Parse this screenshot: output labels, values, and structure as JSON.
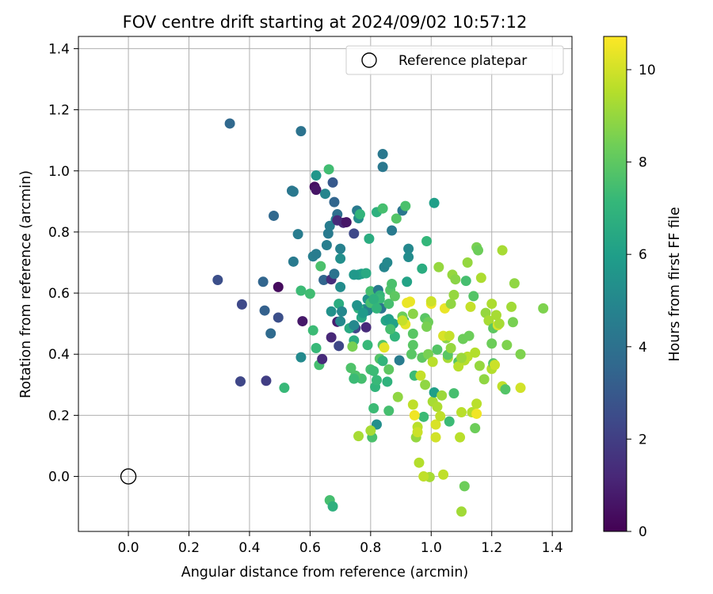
{
  "chart_data": {
    "type": "scatter",
    "title": "FOV centre drift starting at 2024/09/02 10:57:12",
    "xlabel": "Angular distance from reference (arcmin)",
    "ylabel": "Rotation from reference (arcmin)",
    "xlim": [
      -0.165,
      1.465
    ],
    "ylim": [
      -0.18,
      1.44
    ],
    "xticks": [
      0.0,
      0.2,
      0.4,
      0.6,
      0.8,
      1.0,
      1.2,
      1.4
    ],
    "xtick_labels": [
      "0.0",
      "0.2",
      "0.4",
      "0.6",
      "0.8",
      "1.0",
      "1.2",
      "1.4"
    ],
    "yticks": [
      0.0,
      0.2,
      0.4,
      0.6,
      0.8,
      1.0,
      1.2,
      1.4
    ],
    "ytick_labels": [
      "0.0",
      "0.2",
      "0.4",
      "0.6",
      "0.8",
      "1.0",
      "1.2",
      "1.4"
    ],
    "grid": true,
    "legend": {
      "placement": "top-right",
      "entries": [
        "Reference platepar"
      ]
    },
    "reference_point": {
      "x": 0.0,
      "y": 0.0,
      "marker": "open-circle"
    },
    "colorbar": {
      "label": "Hours from first FF file",
      "colormap": "viridis",
      "range": [
        0,
        10.72
      ],
      "ticks": [
        0,
        2,
        4,
        6,
        8,
        10
      ],
      "tick_labels": [
        "0",
        "2",
        "4",
        "6",
        "8",
        "10"
      ],
      "stops": [
        "#440154",
        "#482878",
        "#3e4989",
        "#31688e",
        "#26828e",
        "#1f9e89",
        "#35b779",
        "#6ece58",
        "#b5de2b",
        "#fde725"
      ]
    },
    "series": [
      {
        "points": [
          [
            0.335,
            1.155,
            3.6
          ],
          [
            0.57,
            1.13,
            4.1
          ],
          [
            0.295,
            0.643,
            2.6
          ],
          [
            0.375,
            0.563,
            2.4
          ],
          [
            0.37,
            0.311,
            2.3
          ],
          [
            0.455,
            0.313,
            2.0
          ],
          [
            0.445,
            0.637,
            3.5
          ],
          [
            0.45,
            0.543,
            3.3
          ],
          [
            0.48,
            0.853,
            3.6
          ],
          [
            0.47,
            0.468,
            3.7
          ],
          [
            0.495,
            0.52,
            2.6
          ],
          [
            0.495,
            0.62,
            0.3
          ],
          [
            0.515,
            0.29,
            7.2
          ],
          [
            0.54,
            0.935,
            4.2
          ],
          [
            0.545,
            0.932,
            4.3
          ],
          [
            0.545,
            0.703,
            4.4
          ],
          [
            0.56,
            0.793,
            4.5
          ],
          [
            0.57,
            0.608,
            7.3
          ],
          [
            0.57,
            0.39,
            5.1
          ],
          [
            0.575,
            0.508,
            0.7
          ],
          [
            0.6,
            0.598,
            7.4
          ],
          [
            0.61,
            0.478,
            7.3
          ],
          [
            0.61,
            0.72,
            4.6
          ],
          [
            0.615,
            0.948,
            0.4
          ],
          [
            0.62,
            0.985,
            5.6
          ],
          [
            0.62,
            0.728,
            4.5
          ],
          [
            0.62,
            0.42,
            7.2
          ],
          [
            0.62,
            0.938,
            0.6
          ],
          [
            0.63,
            0.365,
            7.5
          ],
          [
            0.635,
            0.688,
            7.6
          ],
          [
            0.64,
            0.384,
            1.3
          ],
          [
            0.645,
            0.643,
            3.5
          ],
          [
            0.65,
            0.925,
            4.9
          ],
          [
            0.655,
            0.757,
            4.6
          ],
          [
            0.66,
            0.795,
            4.4
          ],
          [
            0.662,
            1.005,
            7.4
          ],
          [
            0.665,
            0.82,
            4.5
          ],
          [
            0.67,
            0.645,
            1.4
          ],
          [
            0.67,
            0.455,
            1.2
          ],
          [
            0.675,
            0.962,
            3.0
          ],
          [
            0.68,
            0.898,
            3.5
          ],
          [
            0.68,
            0.663,
            4.1
          ],
          [
            0.685,
            0.84,
            4.8
          ],
          [
            0.69,
            0.858,
            3.9
          ],
          [
            0.69,
            0.838,
            1.3
          ],
          [
            0.69,
            0.506,
            0.9
          ],
          [
            0.695,
            0.427,
            2.3
          ],
          [
            0.695,
            0.565,
            6.6
          ],
          [
            0.7,
            0.745,
            4.7
          ],
          [
            0.7,
            0.713,
            5.3
          ],
          [
            0.7,
            0.62,
            5.2
          ],
          [
            0.7,
            0.508,
            5.0
          ],
          [
            0.71,
            0.83,
            1.2
          ],
          [
            0.72,
            0.832,
            0.6
          ],
          [
            0.745,
            0.795,
            2.4
          ],
          [
            0.75,
            0.485,
            2.3
          ],
          [
            0.755,
            0.87,
            4.4
          ],
          [
            0.76,
            0.845,
            5.2
          ],
          [
            0.76,
            0.66,
            5.7
          ],
          [
            0.765,
            0.858,
            7.0
          ],
          [
            0.77,
            0.663,
            6.0
          ],
          [
            0.78,
            0.547,
            5.3
          ],
          [
            0.785,
            0.488,
            1.3
          ],
          [
            0.79,
            0.543,
            4.7
          ],
          [
            0.79,
            0.58,
            5.5
          ],
          [
            0.795,
            0.778,
            6.6
          ],
          [
            0.8,
            0.606,
            7.5
          ],
          [
            0.8,
            0.568,
            7.5
          ],
          [
            0.8,
            0.35,
            7.5
          ],
          [
            0.805,
            0.128,
            7.6
          ],
          [
            0.81,
            0.223,
            7.3
          ],
          [
            0.81,
            0.345,
            7.3
          ],
          [
            0.815,
            0.293,
            7.0
          ],
          [
            0.82,
            0.865,
            6.8
          ],
          [
            0.82,
            0.17,
            5.3
          ],
          [
            0.825,
            0.61,
            4.4
          ],
          [
            0.83,
            0.592,
            7.0
          ],
          [
            0.83,
            0.58,
            7.2
          ],
          [
            0.835,
            0.55,
            4.2
          ],
          [
            0.84,
            1.055,
            4.3
          ],
          [
            0.84,
            1.013,
            4.3
          ],
          [
            0.84,
            0.877,
            7.5
          ],
          [
            0.845,
            0.685,
            4.9
          ],
          [
            0.85,
            0.51,
            6.3
          ],
          [
            0.855,
            0.7,
            5.0
          ],
          [
            0.86,
            0.515,
            6.0
          ],
          [
            0.86,
            0.215,
            7.5
          ],
          [
            0.865,
            0.61,
            7.8
          ],
          [
            0.87,
            0.805,
            4.4
          ],
          [
            0.87,
            0.63,
            7.6
          ],
          [
            0.875,
            0.5,
            6.1
          ],
          [
            0.88,
            0.458,
            7.0
          ],
          [
            0.885,
            0.844,
            7.8
          ],
          [
            0.89,
            0.26,
            8.9
          ],
          [
            0.895,
            0.38,
            4.5
          ],
          [
            0.905,
            0.87,
            4.2
          ],
          [
            0.91,
            0.51,
            7.3
          ],
          [
            0.915,
            0.885,
            7.6
          ],
          [
            0.915,
            0.498,
            10.3
          ],
          [
            0.92,
            0.637,
            6.2
          ],
          [
            0.92,
            0.568,
            10.4
          ],
          [
            0.925,
            0.745,
            5.0
          ],
          [
            0.925,
            0.718,
            5.2
          ],
          [
            0.93,
            0.572,
            10.4
          ],
          [
            0.94,
            0.532,
            8.8
          ],
          [
            0.94,
            0.467,
            7.9
          ],
          [
            0.94,
            0.43,
            7.9
          ],
          [
            0.945,
            0.33,
            7.3
          ],
          [
            0.95,
            0.128,
            9.0
          ],
          [
            0.955,
            0.162,
            9.6
          ],
          [
            0.96,
            0.045,
            9.5
          ],
          [
            0.97,
            0.389,
            8.0
          ],
          [
            0.97,
            0.68,
            6.6
          ],
          [
            0.975,
            0.195,
            7.3
          ],
          [
            0.98,
            0.518,
            7.9
          ],
          [
            0.98,
            0.3,
            8.9
          ],
          [
            0.985,
            0.77,
            7.1
          ],
          [
            0.99,
            0.4,
            8.5
          ],
          [
            0.995,
            -0.002,
            9.3
          ],
          [
            1.0,
            0.565,
            10.5
          ],
          [
            1.005,
            0.375,
            9.6
          ],
          [
            1.005,
            0.245,
            9.3
          ],
          [
            1.01,
            0.895,
            6.0
          ],
          [
            1.01,
            0.275,
            6.0
          ],
          [
            1.015,
            0.128,
            10.0
          ],
          [
            1.015,
            0.17,
            10.1
          ],
          [
            1.02,
            0.415,
            7.8
          ],
          [
            1.02,
            0.228,
            9.4
          ],
          [
            1.025,
            0.685,
            9.0
          ],
          [
            1.03,
            0.197,
            9.7
          ],
          [
            1.035,
            0.265,
            9.1
          ],
          [
            1.04,
            0.006,
            9.7
          ],
          [
            1.045,
            0.55,
            10.4
          ],
          [
            1.05,
            0.452,
            8.8
          ],
          [
            1.055,
            0.388,
            9.3
          ],
          [
            1.055,
            0.398,
            7.9
          ],
          [
            1.06,
            0.18,
            7.3
          ],
          [
            1.065,
            0.565,
            8.9
          ],
          [
            1.07,
            0.66,
            9.0
          ],
          [
            1.075,
            0.272,
            7.5
          ],
          [
            1.08,
            0.645,
            8.8
          ],
          [
            1.09,
            0.375,
            7.8
          ],
          [
            1.095,
            0.128,
            9.6
          ],
          [
            1.1,
            0.21,
            9.6
          ],
          [
            1.1,
            -0.115,
            9.2
          ],
          [
            1.105,
            0.45,
            8.3
          ],
          [
            1.11,
            0.38,
            9.5
          ],
          [
            1.11,
            -0.032,
            8.3
          ],
          [
            1.115,
            0.64,
            7.5
          ],
          [
            1.12,
            0.7,
            9.0
          ],
          [
            1.12,
            0.392,
            9.6
          ],
          [
            1.125,
            0.46,
            8.3
          ],
          [
            1.13,
            0.555,
            9.8
          ],
          [
            1.135,
            0.21,
            9.5
          ],
          [
            1.14,
            0.59,
            7.8
          ],
          [
            1.145,
            0.158,
            8.3
          ],
          [
            1.145,
            0.405,
            9.5
          ],
          [
            1.15,
            0.238,
            9.6
          ],
          [
            1.15,
            0.205,
            10.5
          ],
          [
            1.15,
            0.75,
            8.5
          ],
          [
            1.155,
            0.74,
            8.3
          ],
          [
            1.16,
            0.362,
            9.0
          ],
          [
            1.165,
            0.65,
            9.4
          ],
          [
            1.175,
            0.318,
            8.9
          ],
          [
            1.18,
            0.535,
            9.0
          ],
          [
            1.19,
            0.51,
            9.3
          ],
          [
            1.2,
            0.352,
            9.5
          ],
          [
            1.2,
            0.565,
            9.4
          ],
          [
            1.2,
            0.435,
            8.3
          ],
          [
            1.205,
            0.37,
            7.8
          ],
          [
            1.205,
            0.485,
            8.0
          ],
          [
            1.21,
            0.365,
            9.9
          ],
          [
            1.215,
            0.528,
            9.3
          ],
          [
            1.22,
            0.495,
            10.1
          ],
          [
            1.225,
            0.5,
            9.3
          ],
          [
            1.235,
            0.74,
            9.3
          ],
          [
            1.235,
            0.295,
            9.7
          ],
          [
            1.245,
            0.285,
            7.8
          ],
          [
            1.25,
            0.43,
            8.6
          ],
          [
            1.265,
            0.555,
            9.2
          ],
          [
            1.27,
            0.505,
            8.5
          ],
          [
            1.275,
            0.632,
            8.9
          ],
          [
            1.295,
            0.4,
            8.6
          ],
          [
            1.295,
            0.29,
            10.0
          ],
          [
            1.37,
            0.55,
            8.6
          ],
          [
            0.785,
            0.665,
            6.5
          ],
          [
            0.905,
            0.523,
            8.3
          ],
          [
            0.84,
            0.43,
            7.8
          ],
          [
            0.77,
            0.32,
            7.5
          ],
          [
            0.8,
            0.15,
            9.3
          ],
          [
            0.76,
            0.132,
            9.3
          ],
          [
            0.75,
            0.33,
            7.7
          ],
          [
            0.865,
            0.482,
            7.5
          ],
          [
            0.86,
            0.565,
            7.5
          ],
          [
            0.82,
            0.315,
            7.2
          ],
          [
            0.79,
            0.43,
            7.2
          ],
          [
            0.73,
            0.485,
            6.5
          ],
          [
            0.745,
            0.445,
            6.6
          ],
          [
            0.735,
            0.355,
            7.7
          ],
          [
            0.745,
            0.32,
            7.3
          ],
          [
            0.74,
            0.425,
            8.5
          ],
          [
            0.965,
            0.33,
            9.8
          ],
          [
            1.065,
            0.42,
            9.0
          ],
          [
            0.935,
            0.4,
            7.9
          ],
          [
            0.94,
            0.235,
            9.7
          ],
          [
            0.83,
            0.385,
            7.8
          ],
          [
            0.86,
            0.35,
            8.0
          ],
          [
            0.955,
            0.145,
            9.9
          ],
          [
            0.665,
            -0.078,
            7.5
          ],
          [
            0.675,
            -0.098,
            6.8
          ],
          [
            0.975,
            0.0,
            9.7
          ],
          [
            0.945,
            0.2,
            10.5
          ],
          [
            0.84,
            0.378,
            7.0
          ],
          [
            0.81,
            0.58,
            6.8
          ],
          [
            0.88,
            0.59,
            8.0
          ],
          [
            0.905,
            0.51,
            9.8
          ],
          [
            1.0,
            0.573,
            9.9
          ],
          [
            0.99,
            0.505,
            8.3
          ],
          [
            0.985,
            0.49,
            8.5
          ],
          [
            1.04,
            0.46,
            10.1
          ],
          [
            1.06,
            0.46,
            9.8
          ],
          [
            1.075,
            0.594,
            9.0
          ],
          [
            1.09,
            0.36,
            9.6
          ],
          [
            1.1,
            0.388,
            9.1
          ],
          [
            0.855,
            0.31,
            6.9
          ],
          [
            0.845,
            0.422,
            10.3
          ],
          [
            0.82,
            0.55,
            7.0
          ],
          [
            0.77,
            0.52,
            6.4
          ],
          [
            0.76,
            0.55,
            7.0
          ],
          [
            0.775,
            0.535,
            5.8
          ],
          [
            0.755,
            0.56,
            5.5
          ],
          [
            0.745,
            0.66,
            5.7
          ],
          [
            0.745,
            0.495,
            5.0
          ],
          [
            0.705,
            0.54,
            5.0
          ],
          [
            0.67,
            0.54,
            5.4
          ]
        ]
      }
    ]
  }
}
